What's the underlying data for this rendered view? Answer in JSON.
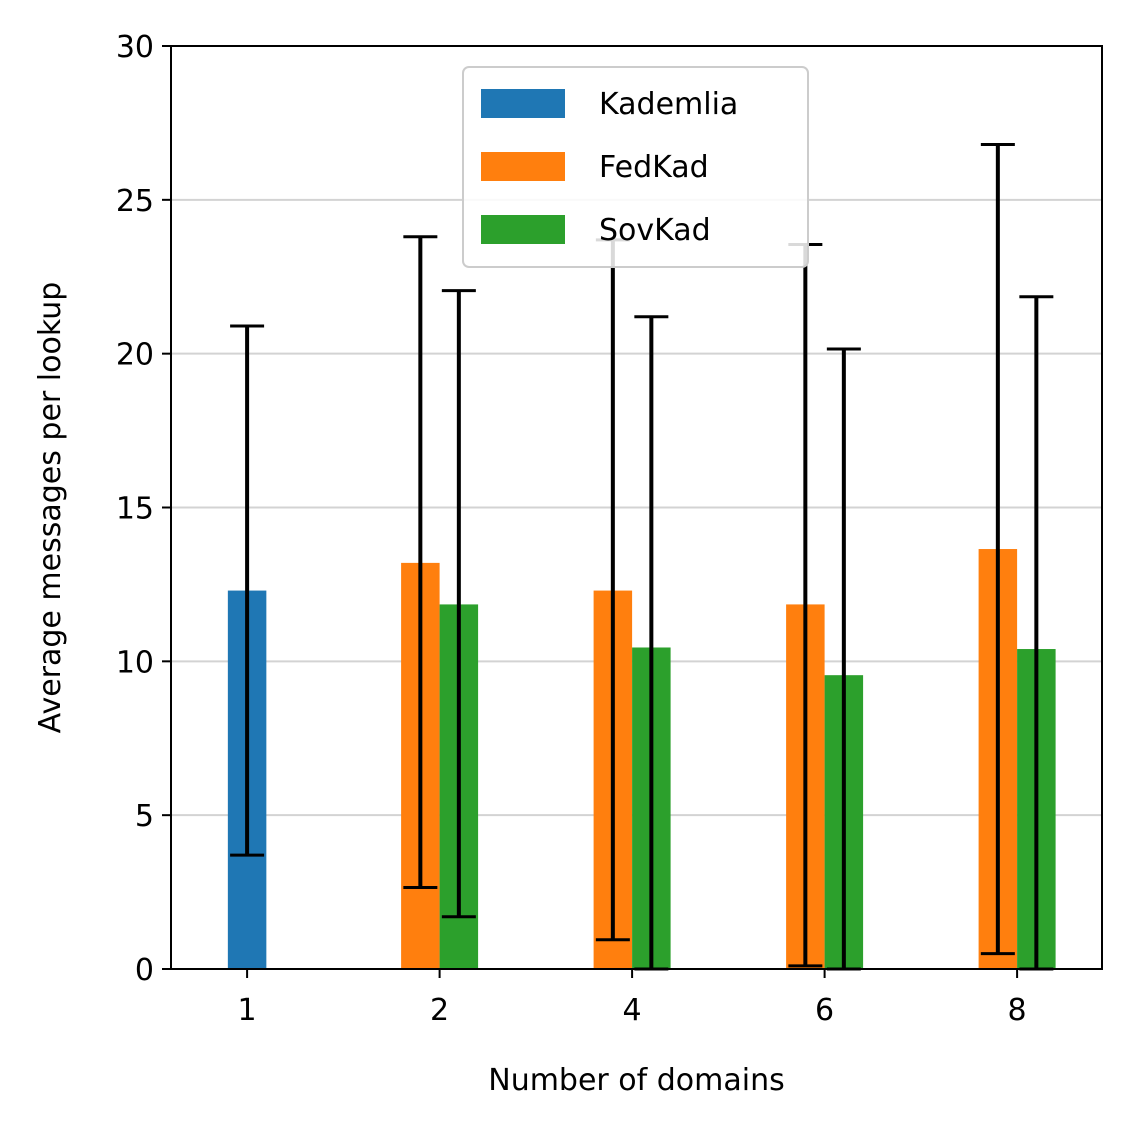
{
  "chart_data": {
    "type": "bar",
    "title": "",
    "xlabel": "Number of domains",
    "ylabel": "Average messages per lookup",
    "categories": [
      "1",
      "2",
      "4",
      "6",
      "8"
    ],
    "ylim": [
      0,
      30
    ],
    "yticks": [
      0,
      5,
      10,
      15,
      20,
      25,
      30
    ],
    "grid": "horizontal",
    "legend_placement": "upper center",
    "series": [
      {
        "name": "Kademlia",
        "color": "#1f77b4",
        "values": [
          12.3,
          null,
          null,
          null,
          null
        ],
        "err_low": [
          3.7,
          null,
          null,
          null,
          null
        ],
        "err_high": [
          20.9,
          null,
          null,
          null,
          null
        ]
      },
      {
        "name": "FedKad",
        "color": "#ff7f0e",
        "values": [
          null,
          13.2,
          12.3,
          11.85,
          13.65
        ],
        "err_low": [
          null,
          2.65,
          0.95,
          0.1,
          0.5
        ],
        "err_high": [
          null,
          23.8,
          23.7,
          23.55,
          26.8
        ]
      },
      {
        "name": "SovKad",
        "color": "#2ca02c",
        "values": [
          null,
          11.85,
          10.45,
          9.55,
          10.4
        ],
        "err_low": [
          null,
          1.7,
          0,
          0,
          0
        ],
        "err_high": [
          null,
          22.05,
          21.2,
          20.15,
          21.85
        ]
      }
    ]
  }
}
